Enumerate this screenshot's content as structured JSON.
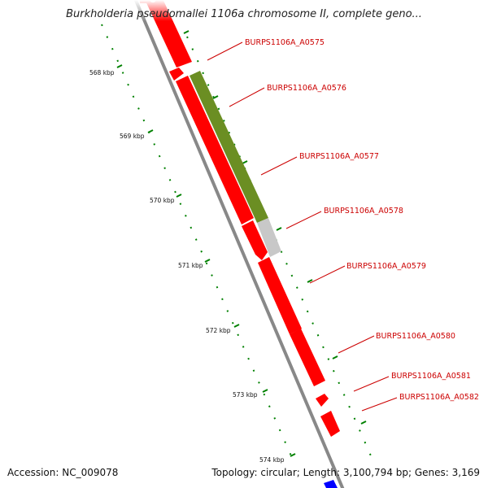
{
  "title": "Burkholderia pseudomallei 1106a chromosome II, complete geno...",
  "footer": {
    "accession": "Accession: NC_009078",
    "summary": "Topology: circular; Length: 3,100,794 bp; Genes: 3,169"
  },
  "scale_labels": [
    "568 kbp",
    "569 kbp",
    "570 kbp",
    "571 kbp",
    "572 kbp",
    "573 kbp",
    "574 kbp"
  ],
  "genes": [
    {
      "name": "BURPS1106A_A0575",
      "color": "#ff0000"
    },
    {
      "name": "BURPS1106A_A0576",
      "color": "#ff0000"
    },
    {
      "name": "BURPS1106A_A0577",
      "color": "#ff0000"
    },
    {
      "name": "BURPS1106A_A0578",
      "color": "#ff0000"
    },
    {
      "name": "BURPS1106A_A0579",
      "color": "#ff0000"
    },
    {
      "name": "BURPS1106A_A0580",
      "color": "#ff0000"
    },
    {
      "name": "BURPS1106A_A0581",
      "color": "#ff0000"
    },
    {
      "name": "BURPS1106A_A0582",
      "color": "#ff0000"
    }
  ],
  "colors": {
    "cds": "#ff0000",
    "highlight": "#6b8e23",
    "gray_feature": "#c8c8c8",
    "backbone": "#888888",
    "tick": "#008000",
    "label": "#cc0000",
    "blue_feature": "#0000ff"
  }
}
